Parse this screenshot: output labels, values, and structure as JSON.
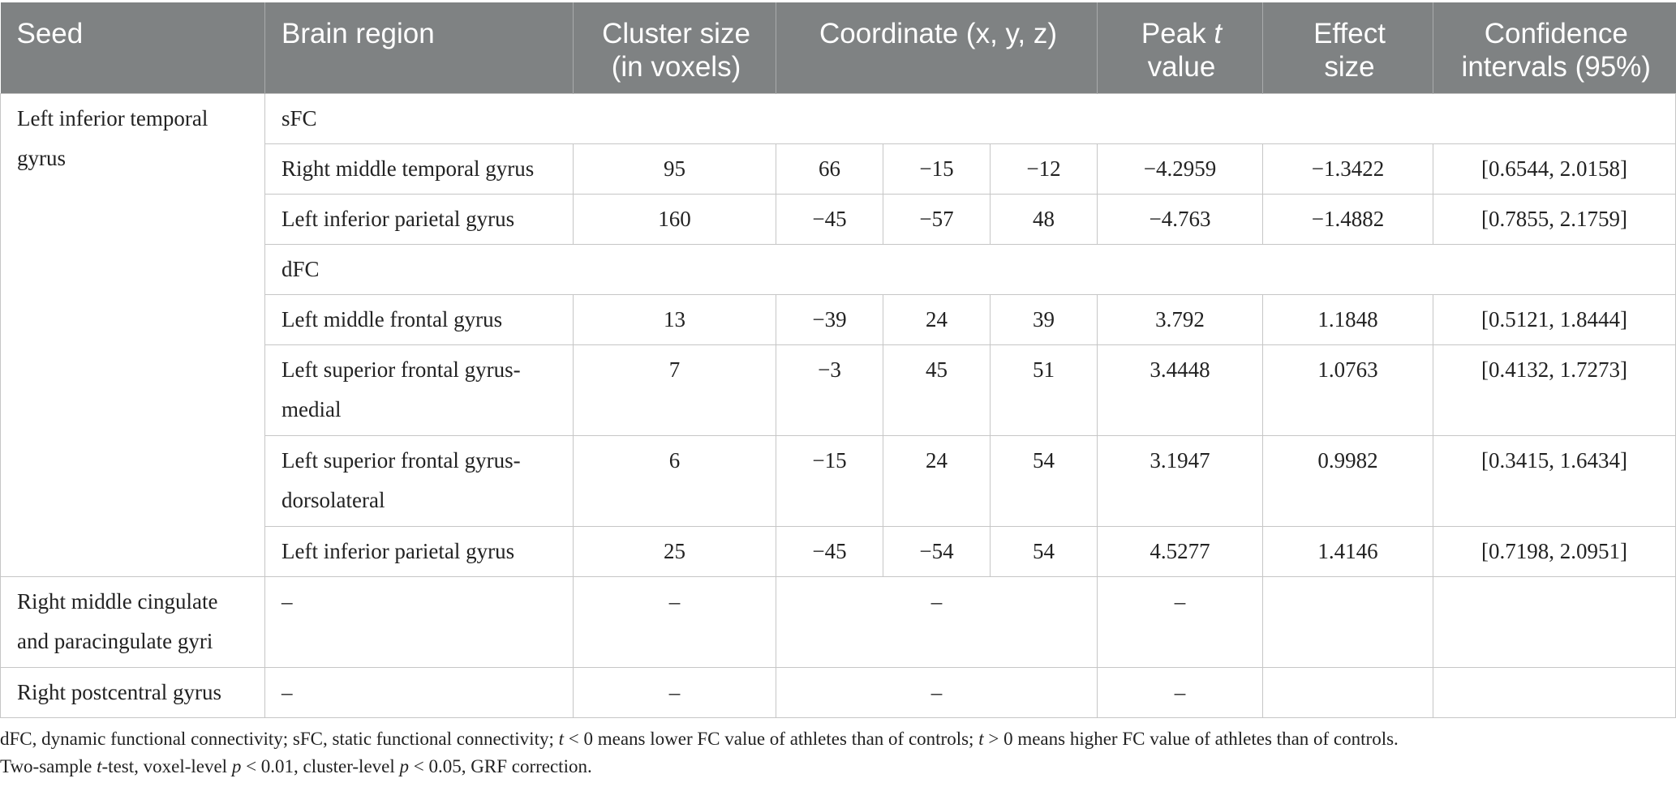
{
  "header": {
    "seed": "Seed",
    "brain_region": "Brain region",
    "cluster_size_line1": "Cluster size",
    "cluster_size_line2": "(in voxels)",
    "coordinate": "Coordinate (x, y, z)",
    "peak_t_line1_pre": "Peak ",
    "peak_t_line1_italic": "t",
    "peak_t_line2": "value",
    "effect_size_line1": "Effect",
    "effect_size_line2": "size",
    "ci_line1": "Confidence",
    "ci_line2": "intervals (95%)"
  },
  "seeds": [
    {
      "seed_line1": "Left inferior temporal",
      "seed_line2": "gyrus"
    },
    {
      "seed_line1": "Right middle cingulate",
      "seed_line2": "and paracingulate gyri"
    },
    {
      "seed_line1": "Right postcentral gyrus"
    }
  ],
  "sections": {
    "sfc": "sFC",
    "dfc": "dFC"
  },
  "rows": [
    {
      "region_line1": "Right middle temporal gyrus",
      "region_line2": "",
      "cluster": "95",
      "x": "66",
      "y": "−15",
      "z": "−12",
      "t": "−4.2959",
      "effect": "−1.3422",
      "ci": "[0.6544, 2.0158]"
    },
    {
      "region_line1": "Left inferior parietal gyrus",
      "region_line2": "",
      "cluster": "160",
      "x": "−45",
      "y": "−57",
      "z": "48",
      "t": "−4.763",
      "effect": "−1.4882",
      "ci": "[0.7855, 2.1759]"
    },
    {
      "region_line1": "Left middle frontal gyrus",
      "region_line2": "",
      "cluster": "13",
      "x": "−39",
      "y": "24",
      "z": "39",
      "t": "3.792",
      "effect": "1.1848",
      "ci": "[0.5121, 1.8444]"
    },
    {
      "region_line1": "Left superior frontal gyrus-",
      "region_line2": "medial",
      "cluster": "7",
      "x": "−3",
      "y": "45",
      "z": "51",
      "t": "3.4448",
      "effect": "1.0763",
      "ci": "[0.4132, 1.7273]"
    },
    {
      "region_line1": "Left superior frontal gyrus-",
      "region_line2": "dorsolateral",
      "cluster": "6",
      "x": "−15",
      "y": "24",
      "z": "54",
      "t": "3.1947",
      "effect": "0.9982",
      "ci": "[0.3415, 1.6434]"
    },
    {
      "region_line1": "Left inferior parietal gyrus",
      "region_line2": "",
      "cluster": "25",
      "x": "−45",
      "y": "−54",
      "z": "54",
      "t": "4.5277",
      "effect": "1.4146",
      "ci": "[0.7198, 2.0951]"
    }
  ],
  "empty_rows": [
    {
      "region": "–",
      "cluster": "–",
      "coordinate": "–",
      "t": "–"
    },
    {
      "region": "–",
      "cluster": "–",
      "coordinate": "–",
      "t": "–"
    }
  ],
  "footnote": {
    "line1_a": "dFC, dynamic functional connectivity; sFC, static functional connectivity; ",
    "line1_t1": "t",
    "line1_b": " < 0 means lower FC value of athletes than of controls; ",
    "line1_t2": "t",
    "line1_c": " > 0 means higher FC value of athletes than of controls.",
    "line2_a": "Two-sample ",
    "line2_t": "t",
    "line2_b": "-test, voxel-level ",
    "line2_p1": "p",
    "line2_c": " < 0.01, cluster-level ",
    "line2_p2": "p",
    "line2_d": " < 0.05, GRF correction."
  }
}
